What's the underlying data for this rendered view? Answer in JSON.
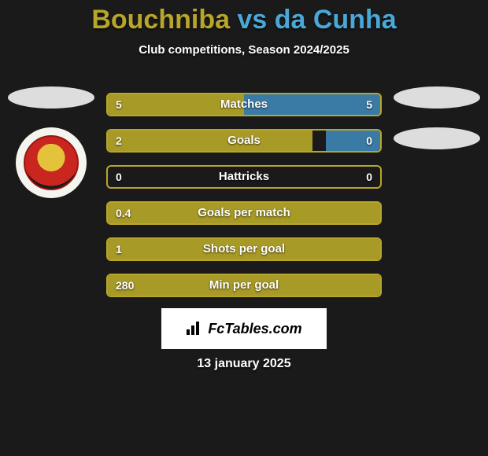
{
  "title_left": "Bouchniba",
  "title_vs": "vs",
  "title_right": "da Cunha",
  "title_color_left": "#b8a62a",
  "title_color_vs": "#4aa8d8",
  "title_color_right": "#4aa8d8",
  "subtitle": "Club competitions, Season 2024/2025",
  "date": "13 january 2025",
  "fctables_label": "FcTables.com",
  "background_color": "#1a1a1a",
  "player_left": {
    "ellipse_color": "#dddddd",
    "has_club_badge": true
  },
  "player_right": {
    "ellipse_color": "#dddddd",
    "has_club_badge": false,
    "second_ellipse_color": "#dddddd"
  },
  "bar_container_width": 350,
  "bars": [
    {
      "label": "Matches",
      "left_value": "5",
      "right_value": "5",
      "left_pct": 50,
      "right_pct": 50,
      "left_fill": "#a89a26",
      "right_fill": "#3a7ba6",
      "border_color": "#b8a62a"
    },
    {
      "label": "Goals",
      "left_value": "2",
      "right_value": "0",
      "left_pct": 75,
      "right_pct": 20,
      "left_fill": "#a89a26",
      "right_fill": "#3a7ba6",
      "border_color": "#b8a62a"
    },
    {
      "label": "Hattricks",
      "left_value": "0",
      "right_value": "0",
      "left_pct": 0,
      "right_pct": 0,
      "left_fill": "#a89a26",
      "right_fill": "#3a7ba6",
      "border_color": "#b8a62a"
    },
    {
      "label": "Goals per match",
      "left_value": "0.4",
      "right_value": "",
      "left_pct": 100,
      "right_pct": 0,
      "left_fill": "#a89a26",
      "right_fill": "#3a7ba6",
      "border_color": "#b8a62a"
    },
    {
      "label": "Shots per goal",
      "left_value": "1",
      "right_value": "",
      "left_pct": 100,
      "right_pct": 0,
      "left_fill": "#a89a26",
      "right_fill": "#3a7ba6",
      "border_color": "#b8a62a"
    },
    {
      "label": "Min per goal",
      "left_value": "280",
      "right_value": "",
      "left_pct": 100,
      "right_pct": 0,
      "left_fill": "#a89a26",
      "right_fill": "#3a7ba6",
      "border_color": "#b8a62a"
    }
  ]
}
